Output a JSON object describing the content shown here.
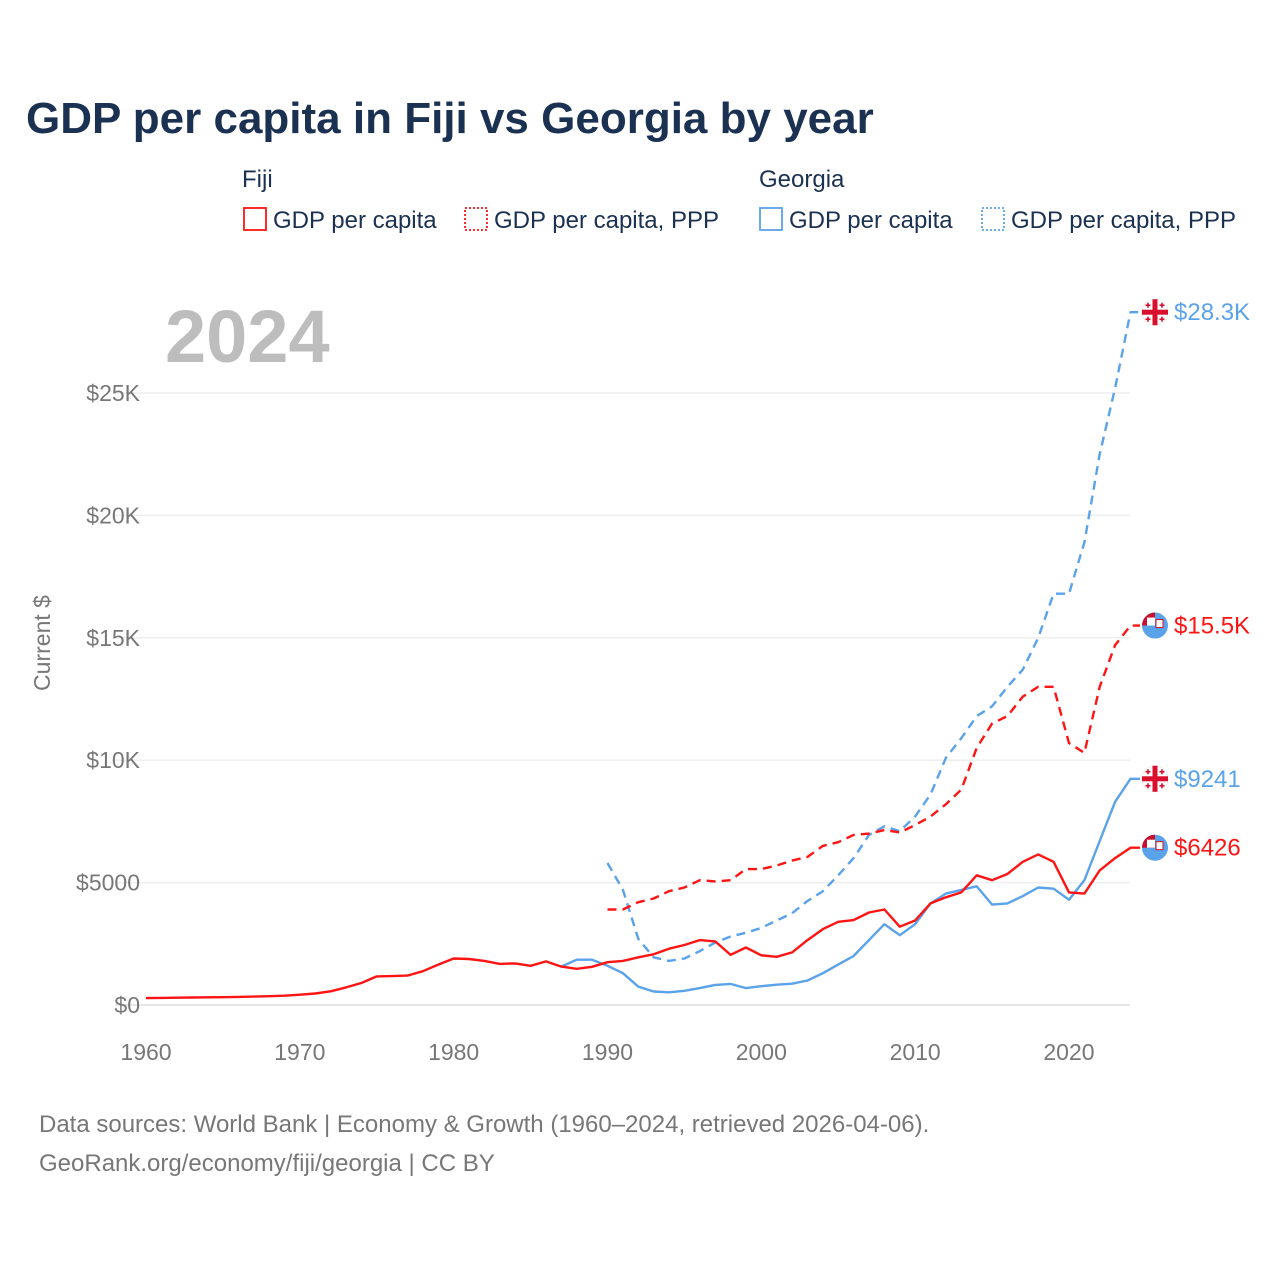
{
  "chart_data": {
    "type": "line",
    "title": "GDP per capita in Fiji vs Georgia by year",
    "ylabel": "Current $",
    "xlabel": "",
    "xlim": [
      1960,
      2024
    ],
    "ylim": [
      0,
      28300
    ],
    "year_watermark": "2024",
    "x_ticks": [
      {
        "v": 1960,
        "label": "1960"
      },
      {
        "v": 1970,
        "label": "1970"
      },
      {
        "v": 1980,
        "label": "1980"
      },
      {
        "v": 1990,
        "label": "1990"
      },
      {
        "v": 2000,
        "label": "2000"
      },
      {
        "v": 2010,
        "label": "2010"
      },
      {
        "v": 2020,
        "label": "2020"
      }
    ],
    "y_ticks": [
      {
        "v": 0,
        "label": "$0"
      },
      {
        "v": 5000,
        "label": "$5000"
      },
      {
        "v": 10000,
        "label": "$10K"
      },
      {
        "v": 15000,
        "label": "$15K"
      },
      {
        "v": 20000,
        "label": "$20K"
      },
      {
        "v": 25000,
        "label": "$25K"
      }
    ],
    "legend_groups": [
      {
        "title": "Fiji",
        "items": [
          {
            "label": "GDP per capita",
            "style": "solid"
          },
          {
            "label": "GDP per capita, PPP",
            "style": "dotted"
          }
        ],
        "color": "#ff1414"
      },
      {
        "title": "Georgia",
        "items": [
          {
            "label": "GDP per capita",
            "style": "solid"
          },
          {
            "label": "GDP per capita, PPP",
            "style": "dotted"
          }
        ],
        "color": "#5aa2ea"
      }
    ],
    "series": [
      {
        "name": "Georgia GDP per capita, PPP",
        "country": "georgia",
        "color": "#5aa2ea",
        "dash": true,
        "end_label": "$28.3K",
        "start": 1990,
        "values": [
          5800,
          4700,
          2700,
          1950,
          1800,
          1900,
          2200,
          2550,
          2800,
          2950,
          3150,
          3450,
          3750,
          4250,
          4650,
          5300,
          6000,
          6950,
          7300,
          7100,
          7700,
          8600,
          10100,
          10900,
          11800,
          12200,
          13000,
          13700,
          15000,
          16800,
          16800,
          18900,
          22500,
          25200,
          28300
        ]
      },
      {
        "name": "Fiji GDP per capita, PPP",
        "country": "fiji",
        "color": "#ff1414",
        "dash": true,
        "end_label": "$15.5K",
        "start": 1990,
        "values": [
          3900,
          3900,
          4200,
          4350,
          4650,
          4800,
          5100,
          5050,
          5100,
          5550,
          5550,
          5700,
          5900,
          6050,
          6500,
          6650,
          6950,
          7000,
          7150,
          7050,
          7350,
          7700,
          8200,
          8800,
          10500,
          11500,
          11800,
          12600,
          13000,
          13000,
          10700,
          10300,
          13000,
          14700,
          15500
        ]
      },
      {
        "name": "Georgia GDP per capita",
        "country": "georgia",
        "color": "#5aa2ea",
        "dash": false,
        "end_label": "$9241",
        "start": 1987,
        "values": [
          1570,
          1850,
          1850,
          1600,
          1300,
          750,
          550,
          520,
          580,
          690,
          820,
          860,
          690,
          770,
          830,
          870,
          1000,
          1300,
          1650,
          2000,
          2650,
          3300,
          2850,
          3300,
          4150,
          4550,
          4700,
          4850,
          4100,
          4150,
          4450,
          4800,
          4750,
          4300,
          5100,
          6700,
          8300,
          9241
        ]
      },
      {
        "name": "Fiji GDP per capita",
        "country": "fiji",
        "color": "#ff1414",
        "dash": false,
        "end_label": "$6426",
        "start": 1960,
        "values": [
          280,
          290,
          300,
          305,
          315,
          320,
          330,
          345,
          360,
          380,
          420,
          470,
          560,
          720,
          900,
          1170,
          1180,
          1200,
          1380,
          1650,
          1900,
          1880,
          1800,
          1680,
          1700,
          1600,
          1780,
          1570,
          1480,
          1560,
          1750,
          1800,
          1950,
          2070,
          2300,
          2450,
          2650,
          2600,
          2050,
          2350,
          2030,
          1970,
          2150,
          2650,
          3100,
          3400,
          3470,
          3780,
          3900,
          3200,
          3450,
          4150,
          4400,
          4600,
          5300,
          5100,
          5350,
          5850,
          6150,
          5850,
          4600,
          4550,
          5500,
          6000,
          6426
        ]
      }
    ]
  },
  "footer": {
    "line1": "Data sources: World Bank | Economy & Growth (1960–2024, retrieved 2026-04-06).",
    "line2": "GeoRank.org/economy/fiji/georgia | CC BY"
  }
}
